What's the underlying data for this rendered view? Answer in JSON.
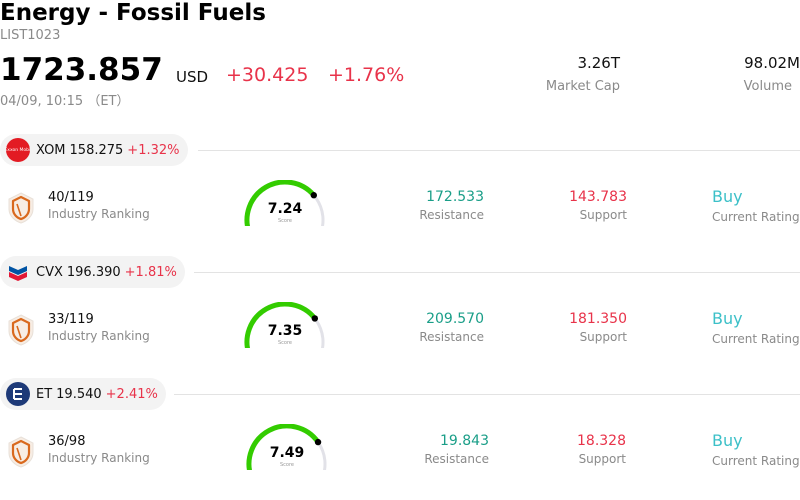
{
  "header": {
    "title": "Energy - Fossil Fuels",
    "code": "LIST1023",
    "price": "1723.857",
    "currency": "USD",
    "change": "+30.425",
    "change_pct": "+1.76%",
    "time": "04/09, 10:15 （ET）",
    "market_cap_value": "3.26T",
    "market_cap_label": "Market Cap",
    "volume_value": "98.02M",
    "volume_label": "Volume"
  },
  "colors": {
    "up_red": "#e8334a",
    "resistance_teal": "#1a9e88",
    "buy_cyan": "#3cc0c8",
    "gauge_green": "#33cc00",
    "gauge_track": "#e2e2e8",
    "shield_orange": "#d9691e"
  },
  "stocks": [
    {
      "logo_icon": "exxonmobil-logo",
      "logo_text": "Exxon Mobil",
      "symbol": "XOM",
      "price": "158.275",
      "change_pct": "+1.32%",
      "rank": "40/119",
      "rank_label": "Industry Ranking",
      "score": "7.24",
      "score_fraction": 0.724,
      "score_label": "Score",
      "resistance": "172.533",
      "resistance_label": "Resistance",
      "support": "143.783",
      "support_label": "Support",
      "rating": "Buy",
      "rating_label": "Current Rating"
    },
    {
      "logo_icon": "chevron-logo",
      "symbol": "CVX",
      "price": "196.390",
      "change_pct": "+1.81%",
      "rank": "33/119",
      "rank_label": "Industry Ranking",
      "score": "7.35",
      "score_fraction": 0.735,
      "score_label": "Score",
      "resistance": "209.570",
      "resistance_label": "Resistance",
      "support": "181.350",
      "support_label": "Support",
      "rating": "Buy",
      "rating_label": "Current Rating"
    },
    {
      "logo_icon": "energy-transfer-logo",
      "symbol": "ET",
      "price": "19.540",
      "change_pct": "+2.41%",
      "rank": "36/98",
      "rank_label": "Industry Ranking",
      "score": "7.49",
      "score_fraction": 0.749,
      "score_label": "Score",
      "resistance": "19.843",
      "resistance_label": "Resistance",
      "support": "18.328",
      "support_label": "Support",
      "rating": "Buy",
      "rating_label": "Current Rating"
    }
  ]
}
